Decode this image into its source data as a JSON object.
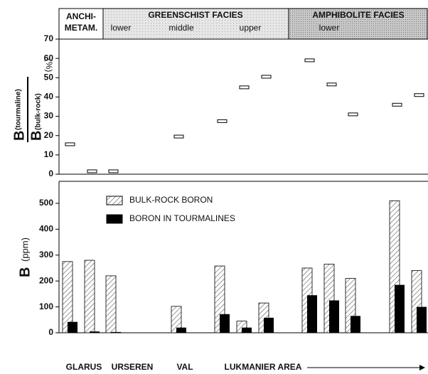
{
  "chart_data": [
    {
      "type": "marker",
      "facies": [
        {
          "label": "ANCHI-",
          "label2": "METAM."
        },
        {
          "label": "GREENSCHIST FACIES",
          "sublabels": [
            "lower",
            "middle",
            "upper"
          ]
        },
        {
          "label": "AMPHIBOLITE FACIES",
          "sublabels": [
            "lower"
          ]
        }
      ],
      "y_label": {
        "numerator": "B",
        "numerator_sub": "(tourmaline)",
        "denominator": "B",
        "denominator_sub": "(bulk-rock)",
        "unit": "(%)"
      },
      "values": [
        15.5,
        1.5,
        1.5,
        19.5,
        27.5,
        45,
        50.5,
        59,
        46.5,
        31,
        36,
        41
      ],
      "ylim": [
        0,
        70
      ],
      "yticks": [
        0,
        10,
        20,
        30,
        40,
        50,
        60,
        70
      ]
    },
    {
      "type": "bar",
      "y_label": {
        "symbol": "B",
        "unit": "(ppm)"
      },
      "series": [
        {
          "name": "BULK-ROCK BORON",
          "color": "#555555",
          "pattern": "hatch",
          "values": [
            275,
            280,
            220,
            102,
            258,
            45,
            115,
            250,
            265,
            210,
            510,
            240
          ]
        },
        {
          "name": "BORON IN TOURMALINES",
          "color": "#000000",
          "values": [
            42,
            5,
            3,
            20,
            72,
            20,
            58,
            145,
            125,
            65,
            185,
            100
          ]
        }
      ],
      "groups": [
        "GLARUS",
        "URSEREN",
        "VAL",
        "LUKMANIER AREA"
      ],
      "ylim": [
        0,
        585
      ],
      "yticks": [
        0,
        100,
        200,
        300,
        400,
        500
      ]
    }
  ]
}
